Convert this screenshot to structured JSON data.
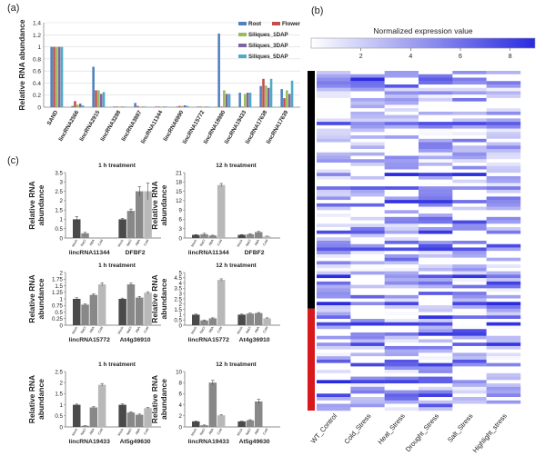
{
  "panel_labels": {
    "a": "(a)",
    "b": "(b)",
    "c": "(c)"
  },
  "colors": {
    "Root": "#4f81bd",
    "Flower": "#c0504d",
    "Siliques_1DAP": "#9bbb59",
    "Siliques_3DAP": "#8064a2",
    "Siliques_5DAP": "#4bacc6",
    "bar_dark": "#4a4a4a",
    "bar_mid": "#888888",
    "bar_light": "#b8b8b8",
    "heat_low": "#ffffff",
    "heat_high": "#2a2ae0",
    "group_black": "#000000",
    "group_red": "#d7191c"
  },
  "chart_data": [
    {
      "id": "a",
      "type": "bar",
      "ylabel": "Relative RNA abundance",
      "ylim": [
        0,
        1.4
      ],
      "yticks": [
        "0",
        "0.2",
        "0.4",
        "0.6",
        "0.8",
        "1",
        "1.2",
        "1.4"
      ],
      "legend_position": "top-right",
      "categories": [
        "SAND",
        "lincRNA2566",
        "lincRNA2915",
        "lincRNA3288",
        "lincRNA3887",
        "lincRNA11344",
        "lincRNA6990",
        "lincRNA15772",
        "lincRNA18980",
        "lincRNA19433",
        "lincRNA17638",
        "lincRNA17639"
      ],
      "series": [
        {
          "name": "Root",
          "values": [
            1.0,
            0.02,
            0.67,
            0.01,
            0.07,
            0.01,
            0.01,
            0.01,
            1.22,
            0.24,
            0.35,
            0.3
          ]
        },
        {
          "name": "Flower",
          "values": [
            1.0,
            0.1,
            0.28,
            0.01,
            0.02,
            0.01,
            0.02,
            0.01,
            0.01,
            0.01,
            0.47,
            0.15
          ]
        },
        {
          "name": "Siliques_1DAP",
          "values": [
            1.0,
            0.04,
            0.28,
            0.01,
            0.01,
            0.01,
            0.02,
            0.01,
            0.28,
            0.22,
            0.36,
            0.28
          ]
        },
        {
          "name": "Siliques_3DAP",
          "values": [
            1.0,
            0.06,
            0.22,
            0.01,
            0.01,
            0.01,
            0.03,
            0.01,
            0.22,
            0.24,
            0.32,
            0.22
          ]
        },
        {
          "name": "Siliques_5DAP",
          "values": [
            1.0,
            0.03,
            0.25,
            0.01,
            0.01,
            0.01,
            0.02,
            0.01,
            0.22,
            0.24,
            0.47,
            0.44
          ]
        }
      ]
    },
    {
      "id": "b",
      "type": "heatmap",
      "title": "Normalized expression value",
      "colorbar_ticks": [
        "2",
        "4",
        "6",
        "8"
      ],
      "colorbar_range": [
        0,
        9
      ],
      "columns": [
        "WT_Control",
        "Cold_Stress",
        "Heat_Stress",
        "Drought_Stress",
        "Salt_Stress",
        "Highlight_stress"
      ],
      "rows": 100,
      "group_split": 0.7,
      "seed": 7
    },
    {
      "id": "c1",
      "type": "bar",
      "title": "1 h treatment",
      "ylabel": "Relative RNA abundance",
      "ylim": [
        0,
        3.5
      ],
      "yticks": [
        "0",
        "0.5",
        "1",
        "1.5",
        "2",
        "2.5",
        "3",
        "3.5"
      ],
      "treatments": [
        "Mock",
        "NaCl",
        "ABA",
        "Cold"
      ],
      "groups": [
        {
          "name": "lincRNA11344",
          "values": [
            1.0,
            0.25,
            0.0,
            0.0
          ],
          "errors": [
            0.15,
            0.05,
            0,
            0
          ]
        },
        {
          "name": "DFBF2",
          "values": [
            1.0,
            1.45,
            2.5,
            2.5
          ],
          "errors": [
            0.05,
            0.1,
            0.25,
            0.45
          ]
        }
      ]
    },
    {
      "id": "c2",
      "type": "bar",
      "title": "12 h treatment",
      "ylabel": "Relative RNA abundance",
      "ylim": [
        0,
        21
      ],
      "yticks": [
        "0",
        "3",
        "6",
        "9",
        "12",
        "15",
        "18",
        "21"
      ],
      "treatments": [
        "Mock",
        "NaCl",
        "ABA",
        "Cold"
      ],
      "groups": [
        {
          "name": "lincRNA11344",
          "values": [
            1.0,
            1.2,
            0.8,
            17.0
          ],
          "errors": [
            0.1,
            0.3,
            0.1,
            0.5
          ]
        },
        {
          "name": "DFBF2",
          "values": [
            1.0,
            1.2,
            1.9,
            0.5
          ],
          "errors": [
            0.1,
            0.2,
            0.2,
            0.1
          ]
        }
      ]
    },
    {
      "id": "c3",
      "type": "bar",
      "title": "1 h treatment",
      "ylabel": "Relative RNA abundance",
      "ylim": [
        0,
        2
      ],
      "yticks": [
        "0",
        "0.25",
        "0.5",
        "0.75",
        "1",
        "1.25",
        "1.5",
        "1.75",
        "2"
      ],
      "treatments": [
        "Mock",
        "NaCl",
        "ABA",
        "Cold"
      ],
      "groups": [
        {
          "name": "lincRNA15772",
          "values": [
            1.0,
            0.78,
            1.15,
            1.55
          ],
          "errors": [
            0.04,
            0.03,
            0.04,
            0.06
          ]
        },
        {
          "name": "At4g36910",
          "values": [
            1.0,
            1.55,
            1.05,
            1.23
          ],
          "errors": [
            0.03,
            0.05,
            0.04,
            0.04
          ]
        }
      ]
    },
    {
      "id": "c4",
      "type": "bar",
      "title": "12 h treatment",
      "ylabel": "Relative RNA abundance",
      "ylim": [
        0,
        5
      ],
      "yticks": [
        "0",
        "0.5",
        "1",
        "1.5",
        "2",
        "2.5",
        "3",
        "3.5",
        "4",
        "4.5",
        "5"
      ],
      "treatments": [
        "Mock",
        "NaCl",
        "ABA",
        "Cold"
      ],
      "groups": [
        {
          "name": "lincRNA15772",
          "values": [
            1.0,
            0.45,
            0.65,
            4.3
          ],
          "errors": [
            0.05,
            0.05,
            0.05,
            0.1
          ]
        },
        {
          "name": "At4g36910",
          "values": [
            1.0,
            1.1,
            1.15,
            0.65
          ],
          "errors": [
            0.05,
            0.05,
            0.05,
            0.05
          ]
        }
      ]
    },
    {
      "id": "c5",
      "type": "bar",
      "title": "1 h treatment",
      "ylabel": "Relative RNA abundance",
      "ylim": [
        0,
        2.5
      ],
      "yticks": [
        "0",
        "0.5",
        "1",
        "1.5",
        "2",
        "2.5"
      ],
      "treatments": [
        "Mock",
        "NaCl",
        "ABA",
        "Cold"
      ],
      "groups": [
        {
          "name": "lincRNA19433",
          "values": [
            1.0,
            0.05,
            0.88,
            1.9
          ],
          "errors": [
            0.03,
            0.01,
            0.03,
            0.06
          ]
        },
        {
          "name": "At5g49630",
          "values": [
            1.0,
            0.65,
            0.55,
            0.85
          ],
          "errors": [
            0.04,
            0.03,
            0.03,
            0.03
          ]
        }
      ]
    },
    {
      "id": "c6",
      "type": "bar",
      "title": "12 h treatment",
      "ylabel": "Relative RNA abundance",
      "ylim": [
        0,
        10
      ],
      "yticks": [
        "0",
        "2",
        "4",
        "6",
        "8",
        "10"
      ],
      "treatments": [
        "Mock",
        "NaCl",
        "ABA",
        "Cold"
      ],
      "groups": [
        {
          "name": "lincRNA19433",
          "values": [
            1.0,
            0.3,
            8.0,
            2.1
          ],
          "errors": [
            0.05,
            0.05,
            0.4,
            0.1
          ]
        },
        {
          "name": "At5g49630",
          "values": [
            1.0,
            1.2,
            4.6,
            0.0
          ],
          "errors": [
            0.05,
            0.1,
            0.4,
            0
          ]
        }
      ]
    }
  ]
}
